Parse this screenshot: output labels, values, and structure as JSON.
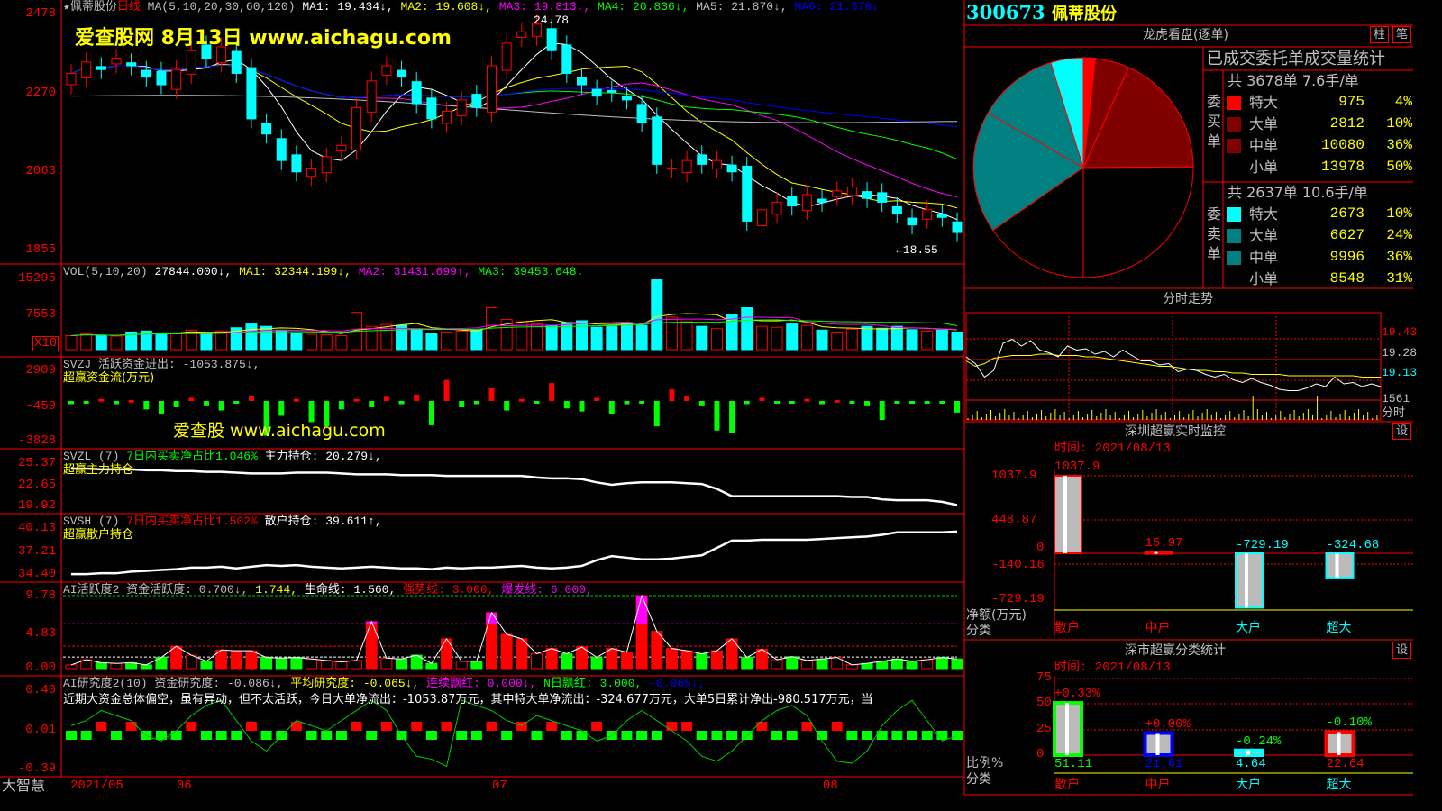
{
  "stock": {
    "code": "300673",
    "name": "佩蒂股份",
    "period": "日线"
  },
  "main_header": {
    "star": "★",
    "ma_params": "MA(5,10,20,30,60,120)",
    "ma1": "MA1: 19.434↓,",
    "ma2": "MA2: 19.608↓,",
    "ma3": "MA3: 19.813↓,",
    "ma4": "MA4: 20.836↓,",
    "ma5": "MA5: 21.870↓,",
    "ma6": "MA6: 21.378↓"
  },
  "watermark1": "爱查股网   8月13日   www.aichagu.com",
  "watermark2": "爱查股 www.aichagu.com",
  "price_axis": [
    "2478",
    "2270",
    "2063",
    "1855"
  ],
  "high_label": "24.78",
  "low_label": "←18.55",
  "vol_header": {
    "name": "VOL(5,10,20)",
    "vol": "27844.000↓,",
    "ma1": "MA1: 32344.199↓,",
    "ma2": "MA2: 31431.699↑,",
    "ma3": "MA3: 39453.648↓"
  },
  "vol_axis": [
    "15295",
    "7553"
  ],
  "vol_unit": "X10",
  "svzj": {
    "title": "SVZJ  活跃资金进出: -1053.875↓,",
    "sub": "超赢资金流(万元)",
    "axis": [
      "2909",
      "-459",
      "-3828"
    ]
  },
  "svzl": {
    "name": "SVZL (7)",
    "ratio": "7日内买卖净占比1.046%",
    "hold": "主力持仓: 20.279↓,",
    "sub": "超赢主力持仓",
    "axis": [
      "25.37",
      "22.65",
      "19.92"
    ]
  },
  "svsh": {
    "name": "SVSH (7)",
    "ratio": "7日内买卖净占比1.502%",
    "hold": "散户持仓: 39.611↑,",
    "sub": "超赢散户持仓",
    "axis": [
      "40.13",
      "37.21",
      "34.40"
    ]
  },
  "ai_act": {
    "name": "AI活跃度2 资金活跃度: 0.700↓,",
    "v2": "1.744,",
    "life": "生命线: 1.560,",
    "strong": "强势线: 3.000,",
    "burst": "爆发线: 6.000,",
    "axis": [
      "9.78",
      "4.83",
      "0.00"
    ]
  },
  "ai_res": {
    "name": "AI研究度2(10) 资金研究度: -0.086↓,",
    "avg": "平均研究度: -0.065↓,",
    "cont": "连续飘红: 0.000↓,",
    "nday": "N日飘红: 3.000,",
    "v2": "-0.065↓,",
    "axis": [
      "0.40",
      "0.01",
      "-0.39"
    ],
    "summary": "近期大资金总体偏空，虽有异动，但不太活跃，今日大单净流出：-1053.87万元，其中特大单净流出：-324.677万元，大单5日累计净出-980.517万元，当"
  },
  "date_axis": {
    "brand": "大智慧",
    "labels": [
      "2021/05",
      "06",
      "07",
      "08"
    ]
  },
  "colors": {
    "up": "#ff0000",
    "down": "#00ffff",
    "grid": "#ff0000"
  },
  "chart_data": {
    "type": "candlestick",
    "closes": [
      23.2,
      23.5,
      23.3,
      23.6,
      23.4,
      23.1,
      22.9,
      23.3,
      23.8,
      23.6,
      23.9,
      23.2,
      22.0,
      21.6,
      20.9,
      20.6,
      20.7,
      21.0,
      21.3,
      22.3,
      23.0,
      23.4,
      23.1,
      22.4,
      22.0,
      22.2,
      22.5,
      22.3,
      23.4,
      24.0,
      24.3,
      24.5,
      23.8,
      23.2,
      22.9,
      22.6,
      22.7,
      22.5,
      21.9,
      20.8,
      20.7,
      20.9,
      20.8,
      20.9,
      20.6,
      19.3,
      19.6,
      19.8,
      19.7,
      20.0,
      19.8,
      20.1,
      20.2,
      19.9,
      19.8,
      19.5,
      19.2,
      19.6,
      19.4,
      19.0
    ],
    "volumes": [
      3000,
      3400,
      3000,
      2900,
      3800,
      4000,
      3600,
      3500,
      4200,
      3300,
      4000,
      4700,
      5500,
      5000,
      4200,
      3500,
      3300,
      3200,
      3000,
      8000,
      5000,
      5400,
      5200,
      4500,
      3500,
      3800,
      4000,
      4200,
      9000,
      6500,
      6000,
      5500,
      5200,
      5800,
      6200,
      4800,
      5000,
      5500,
      5200,
      15000,
      7000,
      6000,
      5000,
      4500,
      7500,
      9000,
      5000,
      4800,
      5500,
      5200,
      4200,
      3800,
      4400,
      5000,
      4600,
      5000,
      4300,
      4000,
      4200,
      3800
    ],
    "fund_flow": [
      -300,
      -200,
      200,
      -300,
      100,
      -800,
      -1200,
      -600,
      300,
      -500,
      -900,
      -200,
      500,
      -3300,
      -1400,
      200,
      -2000,
      -2400,
      -800,
      200,
      -600,
      400,
      -300,
      600,
      -2300,
      2000,
      -600,
      -300,
      1200,
      -900,
      200,
      -100,
      1700,
      -700,
      -1000,
      300,
      -1200,
      -300,
      -100,
      -2400,
      1100,
      500,
      -500,
      -2800,
      -3000,
      -300,
      300,
      -200,
      -100,
      200,
      -300,
      100,
      -200,
      -500,
      -1800,
      -100,
      -50,
      -100,
      -50,
      -1100
    ],
    "main_hold": [
      24.7,
      24.7,
      24.6,
      24.6,
      24.6,
      24.5,
      24.5,
      24.4,
      24.4,
      24.3,
      24.3,
      24.2,
      24.1,
      24.1,
      24.1,
      24.2,
      24.2,
      24.2,
      24.1,
      24.0,
      24.0,
      24.0,
      23.9,
      23.9,
      23.9,
      23.8,
      23.8,
      23.8,
      23.8,
      23.8,
      23.8,
      23.6,
      23.5,
      23.5,
      23.4,
      23.0,
      22.7,
      22.9,
      23.0,
      23.0,
      23.0,
      22.9,
      22.8,
      22.2,
      21.3,
      21.3,
      21.3,
      21.3,
      21.3,
      21.3,
      21.3,
      21.3,
      21.2,
      21.2,
      20.9,
      20.8,
      20.8,
      20.8,
      20.6,
      20.2
    ],
    "retail_hold": [
      34.5,
      34.5,
      34.6,
      34.6,
      34.8,
      34.9,
      35.0,
      35.1,
      35.3,
      35.3,
      35.4,
      35.2,
      35.4,
      35.6,
      35.5,
      35.6,
      35.4,
      35.3,
      35.2,
      35.3,
      35.4,
      35.3,
      35.2,
      35.2,
      35.1,
      35.3,
      35.2,
      35.3,
      35.3,
      35.4,
      35.5,
      35.3,
      35.2,
      35.3,
      35.5,
      36.2,
      36.7,
      36.5,
      36.3,
      36.3,
      36.4,
      36.6,
      36.8,
      37.7,
      38.6,
      38.6,
      38.7,
      38.7,
      38.7,
      38.7,
      38.8,
      38.9,
      39.0,
      39.1,
      39.3,
      39.6,
      39.6,
      39.6,
      39.6,
      39.7
    ],
    "activity": [
      0.5,
      1.2,
      0.8,
      0.7,
      0.8,
      0.5,
      1.5,
      3.0,
      1.8,
      1.0,
      2.5,
      2.4,
      2.4,
      1.5,
      1.4,
      1.5,
      1.3,
      1.1,
      0.9,
      1.1,
      6.3,
      1.4,
      1.3,
      1.8,
      0.7,
      4.0,
      1.0,
      1.0,
      7.5,
      4.6,
      4.0,
      2.0,
      2.7,
      2.0,
      2.9,
      1.5,
      2.7,
      2.2,
      9.78,
      5.0,
      2.7,
      2.4,
      2.0,
      2.4,
      4.0,
      1.5,
      2.6,
      1.2,
      1.6,
      1.1,
      1.3,
      1.5,
      0.5,
      0.7,
      1.0,
      1.3,
      1.0,
      1.2,
      1.5,
      1.3
    ],
    "activity_lines": {
      "life": 1.56,
      "strong": 3.0,
      "burst": 6.0
    },
    "research_line": [
      0.05,
      0.1,
      0.2,
      0.15,
      0.1,
      -0.05,
      -0.1,
      0.0,
      0.15,
      0.25,
      0.3,
      0.1,
      -0.1,
      -0.2,
      -0.05,
      0.1,
      0.05,
      0.0,
      0.1,
      0.2,
      0.3,
      0.2,
      -0.05,
      -0.25,
      -0.28,
      -0.35,
      0.3,
      0.25,
      0.2,
      0.1,
      0.05,
      0.15,
      0.1,
      0.05,
      0.0,
      -0.1,
      -0.05,
      0.1,
      0.2,
      0.1,
      0.0,
      -0.1,
      -0.25,
      -0.3,
      -0.2,
      -0.05,
      0.1,
      0.2,
      0.25,
      0.15,
      -0.1,
      -0.3,
      -0.32,
      -0.2,
      0.05,
      0.2,
      0.3,
      0.1,
      -0.1,
      -0.05
    ],
    "price_range": [
      18.55,
      24.78
    ]
  },
  "right": {
    "title": "龙虎看盘(逐单)",
    "btn_bar": "柱",
    "btn_pen": "笔",
    "stat_title": "已成交委托单成交量统计",
    "buy": {
      "label": "委买单",
      "summary": "共 3678单 7.6手/单",
      "rows": [
        {
          "name": "特大",
          "value": 975,
          "pct": "4%",
          "color": "#ff0000"
        },
        {
          "name": "大单",
          "value": 2812,
          "pct": "10%",
          "color": "#800000"
        },
        {
          "name": "中单",
          "value": 10080,
          "pct": "36%",
          "color": "#800000"
        },
        {
          "name": "小单",
          "value": 13978,
          "pct": "50%",
          "color": "#000000"
        }
      ]
    },
    "sell": {
      "label": "委卖单",
      "summary": "共 2637单 10.6手/单",
      "rows": [
        {
          "name": "特大",
          "value": 2673,
          "pct": "10%",
          "color": "#00ffff"
        },
        {
          "name": "大单",
          "value": 6627,
          "pct": "24%",
          "color": "#008080"
        },
        {
          "name": "中单",
          "value": 9996,
          "pct": "36%",
          "color": "#008080"
        },
        {
          "name": "小单",
          "value": 8548,
          "pct": "31%",
          "color": "#000000"
        }
      ]
    },
    "intraday": {
      "title": "分时走势",
      "axis": [
        "19.43",
        "19.28",
        "19.13",
        "1561",
        "分时"
      ],
      "price": [
        19.25,
        19.2,
        19.1,
        19.15,
        19.35,
        19.38,
        19.33,
        19.37,
        19.3,
        19.28,
        19.25,
        19.33,
        19.3,
        19.31,
        19.27,
        19.29,
        19.25,
        19.3,
        19.26,
        19.22,
        19.22,
        19.19,
        19.2,
        19.14,
        19.16,
        19.15,
        19.12,
        19.1,
        19.12,
        19.08,
        19.06,
        19.09,
        19.06,
        19.04,
        19.01,
        19.0,
        19.0,
        19.02,
        19.05,
        19.03,
        19.1,
        19.05,
        19.06,
        19.03,
        19.05,
        19.03
      ],
      "avg": [
        19.22,
        19.18,
        19.2,
        19.24,
        19.25,
        19.26,
        19.26,
        19.26,
        19.27,
        19.27,
        19.26,
        19.26,
        19.26,
        19.25,
        19.25,
        19.24,
        19.23,
        19.22,
        19.21,
        19.2,
        19.19,
        19.18,
        19.18,
        19.17,
        19.16,
        19.15,
        19.15,
        19.14,
        19.14,
        19.13,
        19.13,
        19.12,
        19.12,
        19.12,
        19.12,
        19.11,
        19.11,
        19.11,
        19.11,
        19.11,
        19.11,
        19.11,
        19.11,
        19.1,
        19.1,
        19.1
      ]
    },
    "sz_monitor": {
      "title": "深圳超赢实时监控",
      "btn": "设",
      "time": "时间: 2021/08/13",
      "axis": [
        "1037.9",
        "448.87",
        "0",
        "-140.16",
        "-729.19"
      ],
      "ylabel": "净额(万元)",
      "xlabel": "分类",
      "bars": [
        {
          "cat": "散户",
          "value": 1037.9,
          "label": "1037.9",
          "color": "#ff0000"
        },
        {
          "cat": "中户",
          "value": 15.97,
          "label": "15.97",
          "color": "#ff0000"
        },
        {
          "cat": "大户",
          "value": -729.19,
          "label": "-729.19",
          "color": "#00ffff"
        },
        {
          "cat": "超大",
          "value": -324.68,
          "label": "-324.68",
          "color": "#00ffff"
        }
      ]
    },
    "sz_class": {
      "title": "深市超赢分类统计",
      "btn": "设",
      "time": "时间: 2021/08/13",
      "axis": [
        "75",
        "50",
        "25",
        "0"
      ],
      "ylabel": "比例%",
      "xlabel": "分类",
      "bars": [
        {
          "cat": "散户",
          "value": 51.11,
          "label": "51.11",
          "change": "+0.33%",
          "color": "#00ff00",
          "cat_color": "#ff0000",
          "change_color": "#ff0000"
        },
        {
          "cat": "中户",
          "value": 21.61,
          "label": "21.61",
          "change": "+0.00%",
          "color": "#0000ff",
          "cat_color": "#ff0000",
          "change_color": "#ff0000"
        },
        {
          "cat": "大户",
          "value": 4.64,
          "label": "4.64",
          "change": "-0.24%",
          "color": "#00ffff",
          "cat_color": "#00ffff",
          "change_color": "#00ff00"
        },
        {
          "cat": "超大",
          "value": 22.64,
          "label": "22.64",
          "change": "-0.10%",
          "color": "#ff0000",
          "cat_color": "#00ffff",
          "change_color": "#00ff00"
        }
      ]
    }
  }
}
